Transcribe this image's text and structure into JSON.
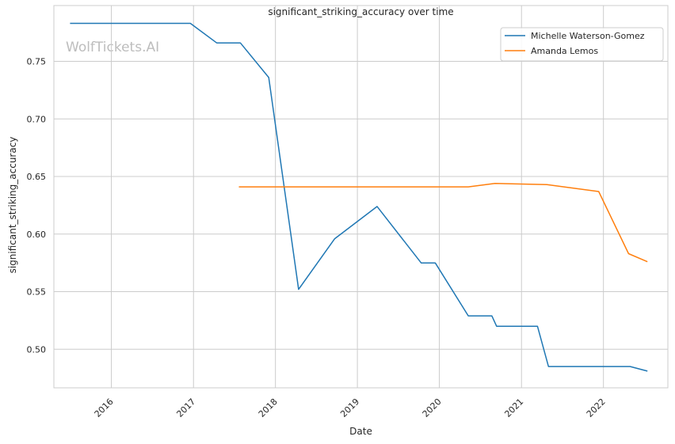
{
  "chart_data": {
    "type": "line",
    "title": "significant_striking_accuracy over time",
    "xlabel": "Date",
    "ylabel": "significant_striking_accuracy",
    "watermark": "WolfTickets.AI",
    "xlim": [
      "2015-04-20",
      "2022-10-15"
    ],
    "ylim": [
      0.4665,
      0.7985
    ],
    "x_ticks": [
      "2016-01-01",
      "2017-01-01",
      "2018-01-01",
      "2019-01-01",
      "2020-01-01",
      "2021-01-01",
      "2022-01-01"
    ],
    "x_tick_labels": [
      "2016",
      "2017",
      "2018",
      "2019",
      "2020",
      "2021",
      "2022"
    ],
    "y_ticks": [
      0.5,
      0.55,
      0.6,
      0.65,
      0.7,
      0.75
    ],
    "y_tick_labels": [
      "0.50",
      "0.55",
      "0.60",
      "0.65",
      "0.70",
      "0.75"
    ],
    "grid": true,
    "legend_position": "top-right",
    "series": [
      {
        "name": "Michelle Waterson-Gomez",
        "color": "#1f77b4",
        "points": [
          [
            "2015-07-01",
            0.783
          ],
          [
            "2016-12-18",
            0.783
          ],
          [
            "2017-04-15",
            0.766
          ],
          [
            "2017-07-29",
            0.766
          ],
          [
            "2017-12-02",
            0.736
          ],
          [
            "2018-04-14",
            0.552
          ],
          [
            "2018-09-22",
            0.596
          ],
          [
            "2019-03-30",
            0.624
          ],
          [
            "2019-10-12",
            0.575
          ],
          [
            "2019-12-14",
            0.575
          ],
          [
            "2020-05-09",
            0.529
          ],
          [
            "2020-08-22",
            0.529
          ],
          [
            "2020-09-12",
            0.52
          ],
          [
            "2021-03-13",
            0.52
          ],
          [
            "2021-05-01",
            0.485
          ],
          [
            "2022-04-30",
            0.485
          ],
          [
            "2022-07-16",
            0.481
          ]
        ]
      },
      {
        "name": "Amanda Lemos",
        "color": "#ff7f0e",
        "points": [
          [
            "2017-07-22",
            0.641
          ],
          [
            "2020-05-09",
            0.641
          ],
          [
            "2020-09-05",
            0.644
          ],
          [
            "2021-04-24",
            0.643
          ],
          [
            "2021-12-11",
            0.637
          ],
          [
            "2022-04-23",
            0.583
          ],
          [
            "2022-07-16",
            0.576
          ]
        ]
      }
    ]
  }
}
